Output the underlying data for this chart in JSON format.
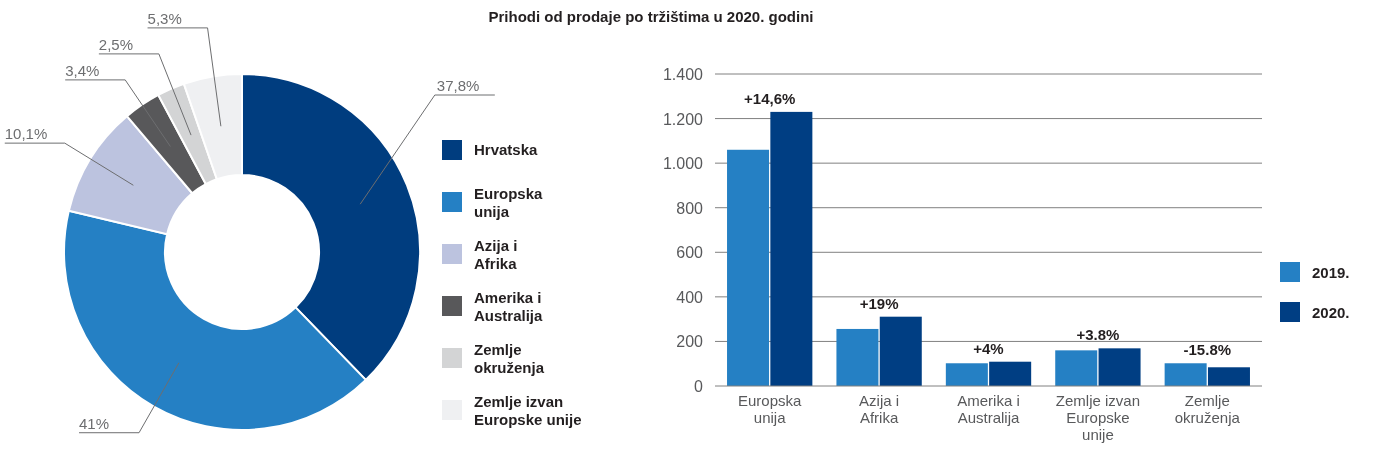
{
  "chart_data": [
    {
      "type": "donut",
      "categories": [
        "Hrvatska",
        "Europska unija",
        "Azija i Afrika",
        "Amerika i Australija",
        "Zemlje okruženja",
        "Zemlje izvan Europske unije"
      ],
      "values": [
        37.8,
        41,
        10.1,
        3.4,
        2.5,
        5.3
      ],
      "value_labels": [
        "37,8%",
        "41%",
        "10,1%",
        "3,4%",
        "2,5%",
        "5,3%"
      ],
      "colors": [
        "#003d7f",
        "#2580c4",
        "#bcc3df",
        "#58585a",
        "#d3d4d5",
        "#eff0f2"
      ],
      "legend": "right"
    },
    {
      "type": "bar",
      "title": "Prihodi od prodaje po tržištima u 2020. godini",
      "categories": [
        "Europska unija",
        "Azija i Afrika",
        "Amerika i Australija",
        "Zemlje izvan Europske unije",
        "Zemlje okruženja"
      ],
      "series": [
        {
          "name": "2019.",
          "color": "#2580c4",
          "values": [
            1060,
            256,
            102,
            160,
            102
          ]
        },
        {
          "name": "2020.",
          "color": "#003e83",
          "values": [
            1230,
            311,
            109,
            169,
            84
          ]
        }
      ],
      "ylim": [
        0,
        1400
      ],
      "yticks": [
        0,
        200,
        400,
        600,
        800,
        {
          "value": 1000,
          "label": "1.000"
        },
        {
          "value": 1200,
          "label": "1.200"
        },
        {
          "value": 1400,
          "label": "1.400"
        }
      ],
      "grid": "y",
      "legend": "right",
      "annotations": [
        {
          "text": "+14,6%",
          "x": "Europska unija",
          "y": 1230
        },
        {
          "text": "+19%",
          "x": "Azija i Afrika",
          "y": 311
        },
        {
          "text": "+4%",
          "x": "Amerika i Australija",
          "y": 109
        },
        {
          "text": "+3.8%",
          "x": "Zemlje izvan Europske unije",
          "y": 169
        },
        {
          "text": "-15.8%",
          "x": "Zemlje okruženja",
          "y": 102
        }
      ]
    }
  ]
}
